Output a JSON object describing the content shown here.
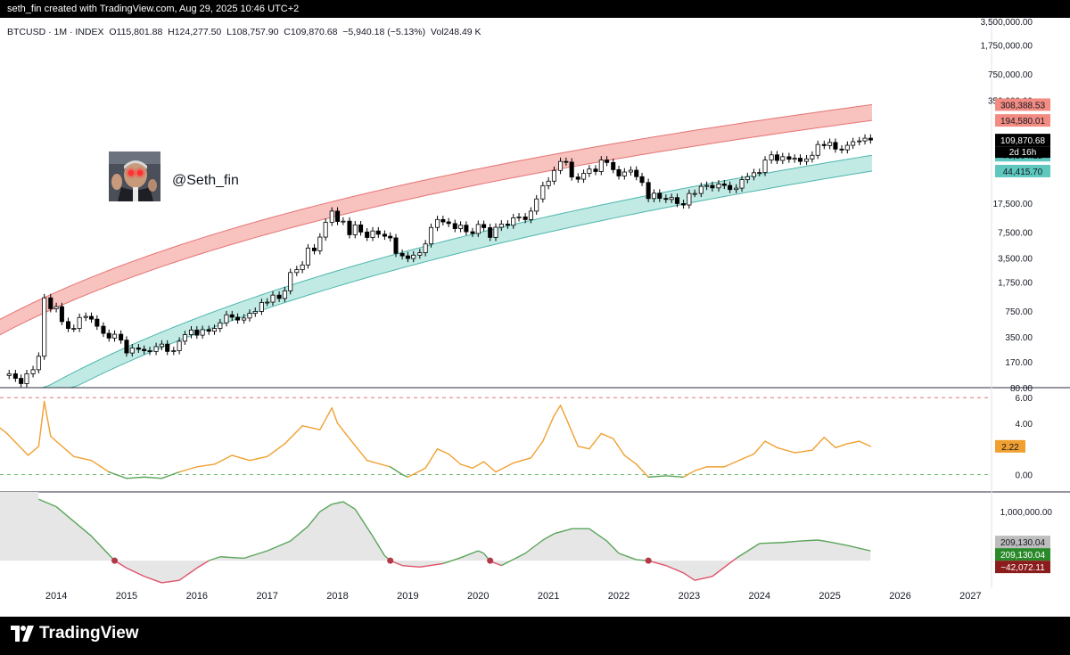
{
  "watermark": "seth_fin created with TradingView.com, Aug 29, 2025 10:46 UTC+2",
  "symbol_line": "BTCUSD · 1M · INDEX  O115,801.88  H124,277.50  L108,757.90  C109,870.68  −5,940.18 (−5.13%)  Vol248.49 K",
  "handle": "@Seth_fin",
  "brand": "TradingView",
  "colors": {
    "up": "#ffffff",
    "down": "#000000",
    "red_band": "#f7b7b3",
    "green_band": "#b6e6e1",
    "osc_line": "#f0a030",
    "osc_low_line": "#5aa55a",
    "mom_pos": "#5aa55a",
    "mom_neg": "#e0506a"
  },
  "chart_data": [
    {
      "type": "candlestick",
      "name": "BTCUSD",
      "yscale": "log",
      "ylim": [
        80,
        3500000
      ],
      "ytick_labels": [
        "3,500,000.00",
        "1,750,000.00",
        "750,000.00",
        "350,000.00",
        "17,500.00",
        "7,500.00",
        "3,500.00",
        "1,750.00",
        "750.00",
        "350.00",
        "170.00",
        "80.00"
      ],
      "ytick_values": [
        3500000,
        1750000,
        750000,
        350000,
        17500,
        7500,
        3500,
        1750,
        750,
        350,
        170,
        80
      ],
      "xlim": [
        2013.2,
        2027.3
      ],
      "xtick_labels": [
        "2014",
        "2015",
        "2016",
        "2017",
        "2018",
        "2019",
        "2020",
        "2021",
        "2022",
        "2023",
        "2024",
        "2025",
        "2026",
        "2027"
      ],
      "xtick_values": [
        2014,
        2015,
        2016,
        2017,
        2018,
        2019,
        2020,
        2021,
        2022,
        2023,
        2024,
        2025,
        2026,
        2027
      ],
      "closes": [
        [
          2013.33,
          120
        ],
        [
          2013.42,
          105
        ],
        [
          2013.5,
          90
        ],
        [
          2013.58,
          120
        ],
        [
          2013.67,
          135
        ],
        [
          2013.75,
          200
        ],
        [
          2013.83,
          1100
        ],
        [
          2013.92,
          800
        ],
        [
          2014.0,
          850
        ],
        [
          2014.08,
          550
        ],
        [
          2014.17,
          450
        ],
        [
          2014.25,
          450
        ],
        [
          2014.33,
          620
        ],
        [
          2014.42,
          640
        ],
        [
          2014.5,
          590
        ],
        [
          2014.58,
          480
        ],
        [
          2014.67,
          390
        ],
        [
          2014.75,
          340
        ],
        [
          2014.83,
          380
        ],
        [
          2014.92,
          320
        ],
        [
          2015.0,
          220
        ],
        [
          2015.08,
          255
        ],
        [
          2015.17,
          245
        ],
        [
          2015.25,
          235
        ],
        [
          2015.33,
          230
        ],
        [
          2015.42,
          265
        ],
        [
          2015.5,
          285
        ],
        [
          2015.58,
          230
        ],
        [
          2015.67,
          235
        ],
        [
          2015.75,
          310
        ],
        [
          2015.83,
          375
        ],
        [
          2015.92,
          430
        ],
        [
          2016.0,
          370
        ],
        [
          2016.08,
          435
        ],
        [
          2016.17,
          415
        ],
        [
          2016.25,
          450
        ],
        [
          2016.33,
          530
        ],
        [
          2016.42,
          670
        ],
        [
          2016.5,
          625
        ],
        [
          2016.58,
          575
        ],
        [
          2016.67,
          610
        ],
        [
          2016.75,
          700
        ],
        [
          2016.83,
          740
        ],
        [
          2016.92,
          960
        ],
        [
          2017.0,
          970
        ],
        [
          2017.08,
          1190
        ],
        [
          2017.17,
          1080
        ],
        [
          2017.25,
          1350
        ],
        [
          2017.33,
          2300
        ],
        [
          2017.42,
          2500
        ],
        [
          2017.5,
          2870
        ],
        [
          2017.58,
          4700
        ],
        [
          2017.67,
          4340
        ],
        [
          2017.75,
          6470
        ],
        [
          2017.83,
          9950
        ],
        [
          2017.92,
          13800
        ],
        [
          2018.0,
          10200
        ],
        [
          2018.08,
          10300
        ],
        [
          2018.17,
          6930
        ],
        [
          2018.25,
          9240
        ],
        [
          2018.33,
          7500
        ],
        [
          2018.42,
          6400
        ],
        [
          2018.5,
          7730
        ],
        [
          2018.58,
          7030
        ],
        [
          2018.67,
          6630
        ],
        [
          2018.75,
          6320
        ],
        [
          2018.83,
          4020
        ],
        [
          2018.92,
          3740
        ],
        [
          2019.0,
          3460
        ],
        [
          2019.08,
          3820
        ],
        [
          2019.17,
          4100
        ],
        [
          2019.25,
          5300
        ],
        [
          2019.33,
          8570
        ],
        [
          2019.42,
          10800
        ],
        [
          2019.5,
          10080
        ],
        [
          2019.58,
          9600
        ],
        [
          2019.67,
          8290
        ],
        [
          2019.75,
          9150
        ],
        [
          2019.83,
          7560
        ],
        [
          2019.92,
          7190
        ],
        [
          2020.0,
          9350
        ],
        [
          2020.08,
          8520
        ],
        [
          2020.17,
          6410
        ],
        [
          2020.25,
          8620
        ],
        [
          2020.33,
          9450
        ],
        [
          2020.42,
          9140
        ],
        [
          2020.5,
          11350
        ],
        [
          2020.58,
          11650
        ],
        [
          2020.67,
          10780
        ],
        [
          2020.75,
          13800
        ],
        [
          2020.83,
          19700
        ],
        [
          2020.92,
          29000
        ],
        [
          2021.0,
          33100
        ],
        [
          2021.08,
          45200
        ],
        [
          2021.17,
          58800
        ],
        [
          2021.25,
          57700
        ],
        [
          2021.33,
          37300
        ],
        [
          2021.42,
          35000
        ],
        [
          2021.5,
          41500
        ],
        [
          2021.58,
          47100
        ],
        [
          2021.67,
          43800
        ],
        [
          2021.75,
          61300
        ],
        [
          2021.83,
          57000
        ],
        [
          2021.92,
          46300
        ],
        [
          2022.0,
          38500
        ],
        [
          2022.08,
          43200
        ],
        [
          2022.17,
          45500
        ],
        [
          2022.25,
          37700
        ],
        [
          2022.33,
          31800
        ],
        [
          2022.42,
          19900
        ],
        [
          2022.5,
          23300
        ],
        [
          2022.58,
          20000
        ],
        [
          2022.67,
          19400
        ],
        [
          2022.75,
          20500
        ],
        [
          2022.83,
          17200
        ],
        [
          2022.92,
          16500
        ],
        [
          2023.0,
          23100
        ],
        [
          2023.08,
          23100
        ],
        [
          2023.17,
          28400
        ],
        [
          2023.25,
          29200
        ],
        [
          2023.33,
          27200
        ],
        [
          2023.42,
          30500
        ],
        [
          2023.5,
          29200
        ],
        [
          2023.58,
          25900
        ],
        [
          2023.67,
          27000
        ],
        [
          2023.75,
          34600
        ],
        [
          2023.83,
          37700
        ],
        [
          2023.92,
          42300
        ],
        [
          2024.0,
          42600
        ],
        [
          2024.08,
          61200
        ],
        [
          2024.17,
          71300
        ],
        [
          2024.25,
          60600
        ],
        [
          2024.33,
          67500
        ],
        [
          2024.42,
          62700
        ],
        [
          2024.5,
          64600
        ],
        [
          2024.58,
          58900
        ],
        [
          2024.67,
          63300
        ],
        [
          2024.75,
          70300
        ],
        [
          2024.83,
          96400
        ],
        [
          2024.92,
          93400
        ],
        [
          2025.0,
          102400
        ],
        [
          2025.08,
          84300
        ],
        [
          2025.17,
          82500
        ],
        [
          2025.25,
          94200
        ],
        [
          2025.33,
          104600
        ],
        [
          2025.42,
          107100
        ],
        [
          2025.5,
          115800
        ],
        [
          2025.58,
          109870
        ]
      ],
      "price_labels": [
        {
          "value": 308388.53,
          "text": "308,388.53",
          "color": "#f28b82"
        },
        {
          "value": 194580.01,
          "text": "194,580.01",
          "color": "#f28b82"
        },
        {
          "value": 109870.68,
          "text": "109,870.68",
          "color": "#000000"
        },
        {
          "value": 70394.15,
          "text": "70,394.15",
          "color": "#5ec8bf"
        },
        {
          "value": 44415.7,
          "text": "44,415.70",
          "color": "#5ec8bf"
        }
      ],
      "countdown": "2d 16h",
      "red_band": {
        "upper_2013": 470,
        "lower_2013": 300,
        "upper_2025_6": 308388.53,
        "lower_2025_6": 194580.01
      },
      "green_band": {
        "upper_2013": 28,
        "lower_2013": 18,
        "upper_2025_6": 70394.15,
        "lower_2025_6": 44415.7
      }
    },
    {
      "type": "line",
      "name": "oscillator",
      "ylim": [
        -0.8,
        6.5
      ],
      "ytick_labels": [
        "6.00",
        "4.00",
        "0.00"
      ],
      "ytick_values": [
        6,
        4,
        0
      ],
      "levels": [
        6,
        0
      ],
      "last_value_label": "2.22",
      "x": [
        2013.0,
        2013.3,
        2013.6,
        2013.75,
        2013.83,
        2013.92,
        2014.0,
        2014.25,
        2014.5,
        2014.75,
        2015.0,
        2015.25,
        2015.5,
        2015.75,
        2016.0,
        2016.25,
        2016.5,
        2016.75,
        2017.0,
        2017.25,
        2017.5,
        2017.75,
        2017.92,
        2018.0,
        2018.17,
        2018.42,
        2018.75,
        2018.92,
        2019.0,
        2019.25,
        2019.42,
        2019.58,
        2019.75,
        2019.92,
        2020.08,
        2020.25,
        2020.5,
        2020.75,
        2020.92,
        2021.08,
        2021.17,
        2021.25,
        2021.42,
        2021.58,
        2021.75,
        2021.92,
        2022.08,
        2022.25,
        2022.42,
        2022.67,
        2022.92,
        2023.08,
        2023.25,
        2023.5,
        2023.75,
        2023.92,
        2024.08,
        2024.25,
        2024.5,
        2024.75,
        2024.92,
        2025.08,
        2025.25,
        2025.42,
        2025.58
      ],
      "y": [
        4.5,
        3.2,
        1.5,
        2.2,
        5.7,
        3.0,
        2.6,
        1.4,
        1.1,
        0.2,
        -0.3,
        -0.2,
        -0.3,
        0.2,
        0.6,
        0.8,
        1.5,
        1.1,
        1.4,
        2.4,
        3.8,
        3.5,
        5.2,
        4.0,
        2.8,
        1.1,
        0.6,
        0.0,
        -0.2,
        0.5,
        2.0,
        1.6,
        0.8,
        0.5,
        1.0,
        0.2,
        0.9,
        1.3,
        2.6,
        4.6,
        5.4,
        4.4,
        2.2,
        2.0,
        3.2,
        2.8,
        1.5,
        0.8,
        -0.2,
        -0.1,
        -0.2,
        0.3,
        0.6,
        0.6,
        1.2,
        1.6,
        2.6,
        2.1,
        1.7,
        1.9,
        2.9,
        2.1,
        2.4,
        2.6,
        2.2
      ]
    },
    {
      "type": "area",
      "name": "momentum",
      "ylim": [
        -560000,
        1400000
      ],
      "ytick_labels": [
        "1,000,000.00"
      ],
      "ytick_values": [
        1000000
      ],
      "last_value_labels": [
        {
          "text": "209,130.04",
          "color": "#bdbdbd"
        },
        {
          "text": "209,130.04",
          "color": "#2a8a2a"
        },
        {
          "text": "−42,072.11",
          "color": "#8b1c1c"
        }
      ],
      "x": [
        2013.75,
        2014.0,
        2014.25,
        2014.5,
        2014.83,
        2015.0,
        2015.25,
        2015.5,
        2015.75,
        2016.0,
        2016.17,
        2016.33,
        2016.67,
        2017.0,
        2017.33,
        2017.58,
        2017.75,
        2017.92,
        2018.08,
        2018.25,
        2018.5,
        2018.67,
        2018.75,
        2018.92,
        2019.17,
        2019.5,
        2019.75,
        2020.0,
        2020.08,
        2020.17,
        2020.33,
        2020.67,
        2020.92,
        2021.08,
        2021.33,
        2021.58,
        2021.83,
        2022.0,
        2022.25,
        2022.42,
        2022.67,
        2022.92,
        2023.08,
        2023.33,
        2023.67,
        2024.0,
        2024.33,
        2024.58,
        2024.83,
        2025.0,
        2025.25,
        2025.58
      ],
      "y": [
        1250000,
        1100000,
        800000,
        500000,
        0,
        -150000,
        -320000,
        -450000,
        -400000,
        -150000,
        0,
        80000,
        50000,
        200000,
        400000,
        700000,
        1000000,
        1150000,
        1200000,
        1050000,
        500000,
        100000,
        0,
        -100000,
        -130000,
        -60000,
        60000,
        200000,
        150000,
        -10000,
        -100000,
        150000,
        420000,
        550000,
        650000,
        650000,
        400000,
        150000,
        20000,
        0,
        -100000,
        -250000,
        -400000,
        -320000,
        50000,
        350000,
        370000,
        400000,
        420000,
        380000,
        310000,
        200000
      ]
    }
  ]
}
